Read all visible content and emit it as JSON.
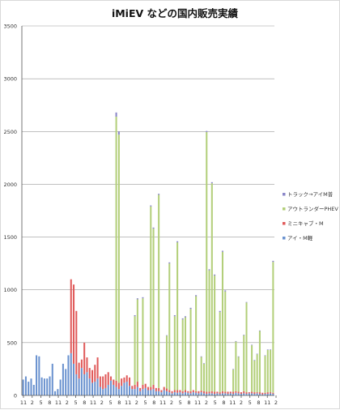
{
  "chart_data": {
    "type": "bar",
    "stacked": true,
    "title": "iMiEV などの国内販売実績",
    "xlabel": "",
    "ylabel": "",
    "ylim": [
      0,
      3500
    ],
    "yticks": [
      0,
      500,
      1000,
      1500,
      2000,
      2500,
      3000,
      3500
    ],
    "xtick_labels": [
      "11",
      "2",
      "5",
      "8",
      "11",
      "2",
      "5",
      "8",
      "11",
      "2",
      "5",
      "8",
      "11",
      "2",
      "5",
      "8",
      "11",
      "2",
      "5",
      "8",
      "11",
      "2",
      "5",
      "8",
      "11",
      "2",
      "5",
      "8",
      "11",
      "2"
    ],
    "grid": "horizontal",
    "legend_position": "right",
    "series": [
      {
        "name": "アイ・M軽",
        "color": "#6a92cf",
        "values": [
          150,
          180,
          130,
          160,
          100,
          380,
          370,
          170,
          160,
          160,
          180,
          300,
          40,
          60,
          150,
          300,
          250,
          380,
          400,
          300,
          200,
          160,
          260,
          200,
          220,
          160,
          120,
          130,
          160,
          80,
          60,
          70,
          100,
          140,
          100,
          80,
          60,
          90,
          120,
          130,
          90,
          60,
          60,
          80,
          40,
          60,
          70,
          50,
          50,
          60,
          40,
          40,
          30,
          50,
          40,
          30,
          20,
          30,
          25,
          30,
          20,
          30,
          25,
          20,
          30,
          25,
          20,
          30,
          20,
          15,
          20,
          20,
          15,
          20,
          15,
          20,
          20,
          15,
          20,
          15,
          25,
          20,
          15,
          20,
          15,
          20,
          20,
          15,
          20,
          15,
          10,
          15,
          15,
          20,
          15
        ]
      },
      {
        "name": "ミニキャブ・M",
        "color": "#e05a5a",
        "values": [
          0,
          0,
          0,
          0,
          0,
          0,
          0,
          0,
          0,
          0,
          0,
          0,
          0,
          0,
          0,
          0,
          0,
          0,
          700,
          750,
          600,
          150,
          80,
          300,
          140,
          100,
          120,
          160,
          200,
          100,
          120,
          130,
          120,
          40,
          50,
          60,
          60,
          70,
          50,
          60,
          80,
          30,
          40,
          50,
          30,
          40,
          40,
          30,
          30,
          40,
          30,
          30,
          20,
          30,
          25,
          20,
          20,
          20,
          25,
          20,
          20,
          20,
          15,
          20,
          20,
          15,
          20,
          15,
          20,
          20,
          15,
          20,
          20,
          15,
          15,
          20,
          15,
          20,
          15,
          20,
          15,
          15,
          15,
          20,
          15,
          10,
          15,
          15,
          10,
          15,
          15,
          10,
          15,
          10,
          10
        ]
      },
      {
        "name": "アウトランダーPHEV",
        "color": "#b3cf7a",
        "values": [
          0,
          0,
          0,
          0,
          0,
          0,
          0,
          0,
          0,
          0,
          0,
          0,
          0,
          0,
          0,
          0,
          0,
          0,
          0,
          0,
          0,
          0,
          0,
          0,
          0,
          0,
          0,
          0,
          0,
          0,
          0,
          0,
          0,
          0,
          0,
          2500,
          2350,
          0,
          0,
          0,
          0,
          0,
          650,
          780,
          0,
          820,
          0,
          0,
          1710,
          1480,
          0,
          1830,
          0,
          0,
          500,
          1200,
          0,
          700,
          1400,
          0,
          680,
          690,
          0,
          780,
          0,
          900,
          0,
          320,
          260,
          2460,
          1150,
          1970,
          1100,
          0,
          760,
          1320,
          950,
          0,
          0,
          210,
          470,
          330,
          0,
          530,
          850,
          0,
          440,
          300,
          360,
          580,
          0,
          350,
          400,
          400,
          1240
        ]
      },
      {
        "name": "トラック→アイM普",
        "color": "#8a86c8",
        "values": [
          0,
          0,
          0,
          0,
          0,
          0,
          0,
          0,
          0,
          0,
          0,
          0,
          0,
          0,
          0,
          0,
          0,
          0,
          0,
          0,
          0,
          0,
          0,
          0,
          0,
          0,
          0,
          0,
          0,
          0,
          0,
          0,
          0,
          0,
          0,
          40,
          30,
          0,
          0,
          0,
          0,
          0,
          10,
          10,
          0,
          10,
          0,
          0,
          10,
          10,
          0,
          10,
          0,
          0,
          5,
          10,
          0,
          10,
          10,
          0,
          10,
          10,
          0,
          10,
          0,
          10,
          0,
          5,
          5,
          10,
          10,
          10,
          10,
          0,
          10,
          10,
          10,
          0,
          0,
          5,
          5,
          5,
          0,
          5,
          5,
          0,
          5,
          5,
          5,
          5,
          0,
          5,
          5,
          5,
          10
        ]
      }
    ]
  }
}
